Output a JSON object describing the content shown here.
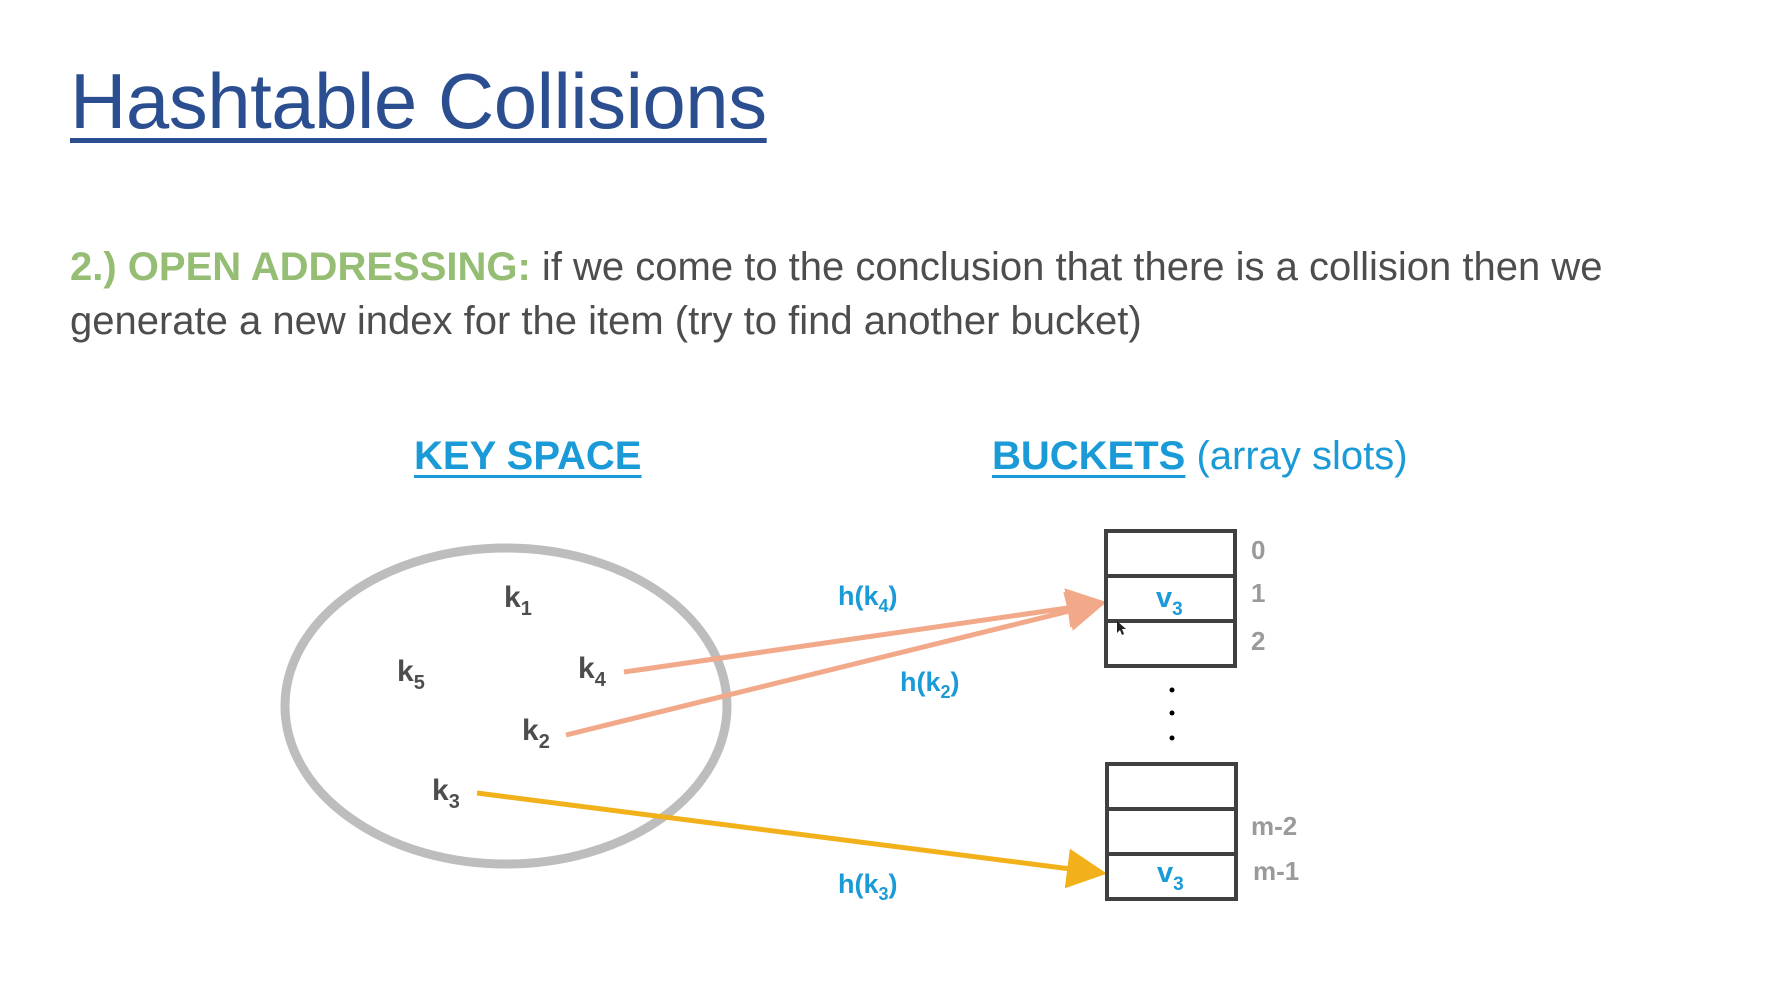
{
  "title": "Hashtable Collisions",
  "description": {
    "lead": "2.)  OPEN ADDRESSING:",
    "text": " if we come to the conclusion that there is a collision then we generate a new index for the item (try to find another bucket)"
  },
  "key_space": {
    "heading": "KEY SPACE",
    "keys": [
      "k1",
      "k5",
      "k4",
      "k2",
      "k3"
    ]
  },
  "buckets": {
    "heading": "BUCKETS",
    "heading_suffix": " (array slots)",
    "top_indices": [
      "0",
      "1",
      "2"
    ],
    "bottom_indices": [
      "m-2",
      "m-1"
    ],
    "values": {
      "slot_1": "v3",
      "slot_m1": "v3"
    }
  },
  "hash_labels": {
    "h_k4": "h(k4)",
    "h_k2": "h(k2)",
    "h_k3": "h(k3)"
  },
  "colors": {
    "title": "#2a4e8f",
    "lead": "#95bd73",
    "body_text": "#4d4d4d",
    "accent_blue": "#1a9ad6",
    "ellipse": "#bdbdbd",
    "arrow_salmon": "#f2a98a",
    "arrow_gold": "#f2b11b",
    "box_stroke": "#404040",
    "index_gray": "#9a9a9a"
  }
}
